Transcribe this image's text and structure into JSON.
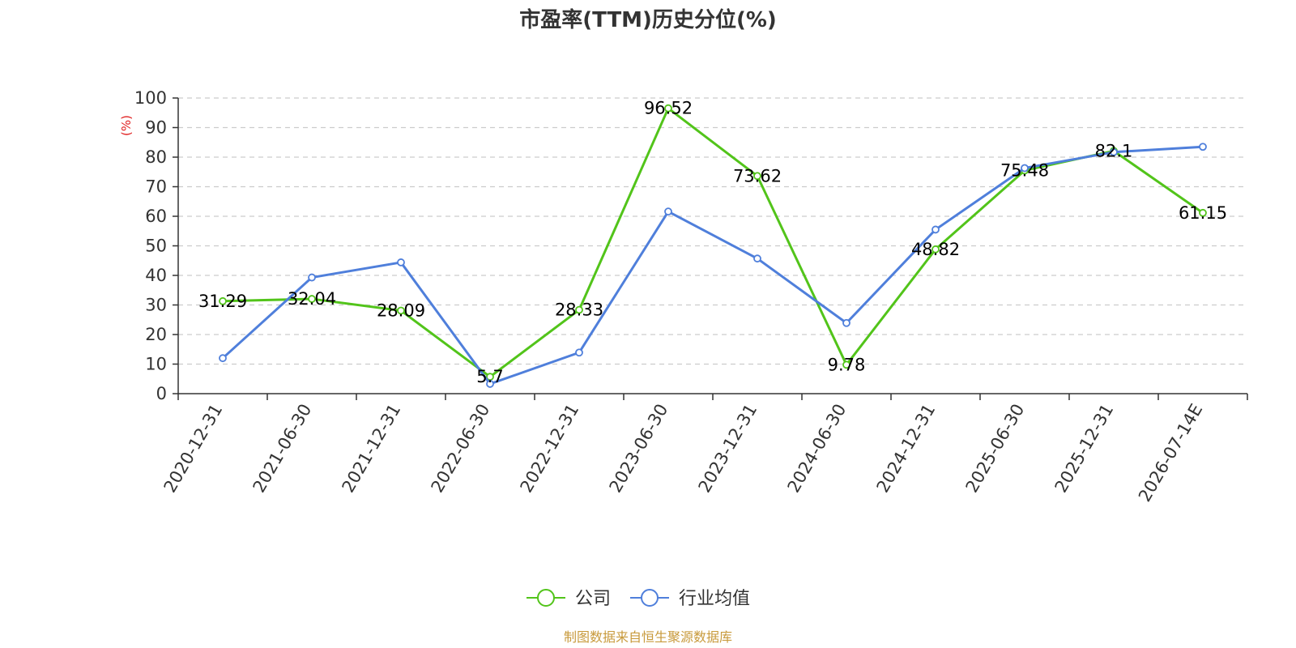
{
  "chart_data": {
    "type": "line",
    "title": "市盈率(TTM)历史分位(%)",
    "ylabel": "(%)",
    "ylim": [
      0,
      100
    ],
    "yticks": [
      0,
      10,
      20,
      30,
      40,
      50,
      60,
      70,
      80,
      90,
      100
    ],
    "grid": true,
    "legend_position": "bottom-center",
    "categories": [
      "2020-12-31",
      "2021-06-30",
      "2021-12-31",
      "2022-06-30",
      "2022-12-31",
      "2023-06-30",
      "2023-12-31",
      "2024-06-30",
      "2024-12-31",
      "2025-06-30",
      "2025-12-31",
      "2026-07-14E"
    ],
    "series": [
      {
        "name": "公司",
        "color": "#52c41a",
        "values": [
          31.29,
          32.04,
          28.09,
          5.7,
          28.33,
          96.52,
          73.62,
          9.78,
          48.82,
          75.48,
          82.1,
          61.15
        ],
        "labels": [
          "31.29",
          "32.04",
          "28.09",
          "5.7",
          "28.33",
          "96.52",
          "73.62",
          "9.78",
          "48.82",
          "75.48",
          "82.1",
          "61.15"
        ]
      },
      {
        "name": "行业均值",
        "color": "#4f7fdb",
        "values": [
          12,
          39.3,
          44.4,
          3.3,
          13.9,
          61.6,
          45.7,
          23.9,
          55.5,
          76.3,
          81.7,
          83.5
        ]
      }
    ]
  },
  "source_text": "制图数据来自恒生聚源数据库",
  "colors": {
    "ylabel": "#e02020",
    "source": "#c89a3c",
    "axis": "#333333",
    "grid": "#cccccc"
  }
}
